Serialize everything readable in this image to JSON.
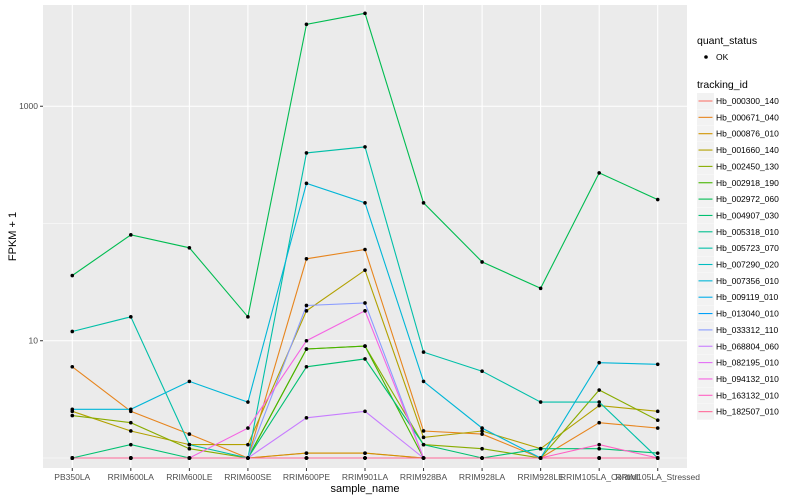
{
  "chart_data": {
    "type": "line",
    "xlabel": "sample_name",
    "ylabel": "FPKM + 1",
    "y_scale": "log10",
    "ylim": [
      1,
      6000
    ],
    "y_ticks": [
      10,
      1000
    ],
    "grid": true,
    "legend_position": "right",
    "categories": [
      "PB350LA",
      "RRIM600LA",
      "RRIM600LE",
      "RRIM600SE",
      "RRIM600PE",
      "RRIM901LA",
      "RRIM928BA",
      "RRIM928LA",
      "RRIM928LE",
      "RRIM105LA_Control",
      "RRIM105LA_Stressed"
    ],
    "quant_status": {
      "title": "quant_status",
      "entries": [
        "OK"
      ]
    },
    "legend_title": "tracking_id",
    "series": [
      {
        "name": "Hb_000300_140",
        "color": "#F8766D",
        "values": [
          1,
          1,
          1,
          1,
          1.1,
          1.1,
          1,
          1,
          1,
          1,
          1
        ]
      },
      {
        "name": "Hb_000671_040",
        "color": "#E7851E",
        "values": [
          6,
          2.5,
          1.6,
          1,
          50,
          60,
          1.7,
          1.6,
          1,
          2,
          1.8
        ]
      },
      {
        "name": "Hb_000876_010",
        "color": "#D09400",
        "values": [
          1,
          1,
          1,
          1,
          1.1,
          1.1,
          1,
          1,
          1,
          1,
          1
        ]
      },
      {
        "name": "Hb_001660_140",
        "color": "#B2A100",
        "values": [
          2.5,
          1.7,
          1.3,
          1.3,
          18,
          40,
          1.5,
          1.7,
          1.2,
          2.8,
          2.5
        ]
      },
      {
        "name": "Hb_002450_130",
        "color": "#89AC00",
        "values": [
          2.3,
          2,
          1.2,
          1,
          8.5,
          9,
          1.3,
          1.2,
          1,
          3.8,
          2.1
        ]
      },
      {
        "name": "Hb_002918_190",
        "color": "#45B500",
        "values": [
          1,
          1,
          1,
          1,
          8.5,
          9,
          1,
          1,
          1,
          1,
          1
        ]
      },
      {
        "name": "Hb_002972_060",
        "color": "#00BC51",
        "values": [
          36,
          80,
          62,
          16,
          5000,
          6200,
          150,
          47,
          28,
          270,
          160
        ]
      },
      {
        "name": "Hb_004907_030",
        "color": "#00C071",
        "values": [
          1,
          1.3,
          1,
          1,
          6,
          7,
          1.3,
          1,
          1.2,
          1.2,
          1.1
        ]
      },
      {
        "name": "Hb_005318_010",
        "color": "#00C08E",
        "values": [
          1,
          1,
          1,
          1,
          1,
          1,
          1,
          1,
          1,
          1,
          1
        ]
      },
      {
        "name": "Hb_005723_070",
        "color": "#00BFA8",
        "values": [
          12,
          16,
          1.3,
          1,
          400,
          450,
          8,
          5.5,
          3,
          3,
          1
        ]
      },
      {
        "name": "Hb_007290_020",
        "color": "#00BCC1",
        "values": [
          1,
          1,
          1,
          1,
          1,
          1,
          1,
          1,
          1,
          1,
          1
        ]
      },
      {
        "name": "Hb_007356_010",
        "color": "#00B6D7",
        "values": [
          2.6,
          2.6,
          4.5,
          3,
          220,
          150,
          4.5,
          1.8,
          1,
          6.5,
          6.3
        ]
      },
      {
        "name": "Hb_009119_010",
        "color": "#00ACEA",
        "values": [
          1,
          1,
          1,
          1,
          1,
          1,
          1,
          1,
          1,
          1,
          1
        ]
      },
      {
        "name": "Hb_013040_010",
        "color": "#00A0F9",
        "values": [
          1,
          1,
          1,
          1,
          1,
          1,
          1,
          1,
          1,
          1,
          1
        ]
      },
      {
        "name": "Hb_033312_110",
        "color": "#8A9CFF",
        "values": [
          1,
          1,
          1,
          1,
          20,
          21,
          1,
          1,
          1,
          1,
          1
        ]
      },
      {
        "name": "Hb_068804_060",
        "color": "#C77CFF",
        "values": [
          1,
          1,
          1,
          1,
          2.2,
          2.5,
          1,
          1,
          1,
          1,
          1
        ]
      },
      {
        "name": "Hb_082195_010",
        "color": "#E46DF6",
        "values": [
          1,
          1,
          1,
          1,
          1,
          1,
          1,
          1,
          1,
          1,
          1
        ]
      },
      {
        "name": "Hb_094132_010",
        "color": "#F564E3",
        "values": [
          1,
          1,
          1,
          1.8,
          10,
          18,
          1,
          1,
          1,
          1,
          1
        ]
      },
      {
        "name": "Hb_163132_010",
        "color": "#FF61C3",
        "values": [
          1,
          1,
          1,
          1,
          1,
          1,
          1,
          1,
          1,
          1.3,
          1
        ]
      },
      {
        "name": "Hb_182507_010",
        "color": "#FF6A98",
        "values": [
          1,
          1,
          1,
          1,
          1,
          1,
          1,
          1,
          1,
          1,
          1
        ]
      }
    ]
  }
}
